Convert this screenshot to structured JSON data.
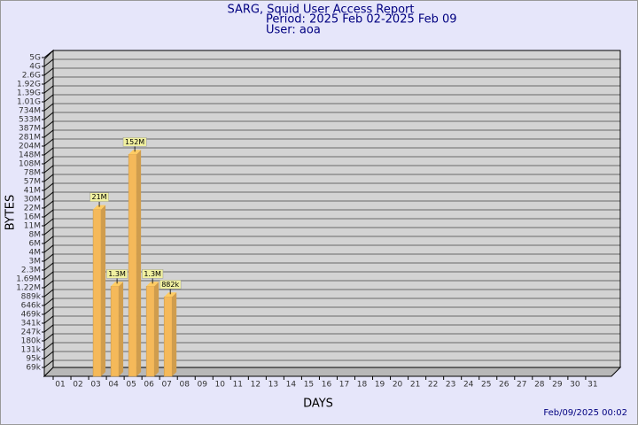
{
  "chart_data": {
    "type": "bar3d",
    "title": "SARG, Squid User Access Report",
    "subtitle": "Period: 2025 Feb 02-2025 Feb 09",
    "user": "User: aoa",
    "x_label": "DAYS",
    "y_label": "BYTES",
    "footer": "Feb/09/2025 00:02",
    "categories": [
      "01",
      "02",
      "03",
      "04",
      "05",
      "06",
      "07",
      "08",
      "09",
      "10",
      "11",
      "12",
      "13",
      "14",
      "15",
      "16",
      "17",
      "18",
      "19",
      "20",
      "21",
      "22",
      "23",
      "24",
      "25",
      "26",
      "27",
      "28",
      "29",
      "30",
      "31"
    ],
    "values": [
      null,
      null,
      21000000,
      1300000,
      152000000,
      1300000,
      882000,
      null,
      null,
      null,
      null,
      null,
      null,
      null,
      null,
      null,
      null,
      null,
      null,
      null,
      null,
      null,
      null,
      null,
      null,
      null,
      null,
      null,
      null,
      null,
      null
    ],
    "value_labels": [
      null,
      null,
      "21M",
      "1.3M",
      "152M",
      "1.3M",
      "882k",
      null,
      null,
      null,
      null,
      null,
      null,
      null,
      null,
      null,
      null,
      null,
      null,
      null,
      null,
      null,
      null,
      null,
      null,
      null,
      null,
      null,
      null,
      null,
      null
    ],
    "color": "#f5b95a",
    "ylim": [
      0,
      5000000000
    ],
    "yticks": [
      {
        "value": 69000,
        "label": "69k"
      },
      {
        "value": 95000,
        "label": "95k"
      },
      {
        "value": 131000,
        "label": "131k"
      },
      {
        "value": 180000,
        "label": "180k"
      },
      {
        "value": 247000,
        "label": "247k"
      },
      {
        "value": 341000,
        "label": "341k"
      },
      {
        "value": 469000,
        "label": "469k"
      },
      {
        "value": 646000,
        "label": "646k"
      },
      {
        "value": 889000,
        "label": "889k"
      },
      {
        "value": 1220000,
        "label": "1.22M"
      },
      {
        "value": 1690000,
        "label": "1.69M"
      },
      {
        "value": 2300000,
        "label": "2.3M"
      },
      {
        "value": 3000000,
        "label": "3M"
      },
      {
        "value": 4000000,
        "label": "4M"
      },
      {
        "value": 6000000,
        "label": "6M"
      },
      {
        "value": 8000000,
        "label": "8M"
      },
      {
        "value": 11000000,
        "label": "11M"
      },
      {
        "value": 16000000,
        "label": "16M"
      },
      {
        "value": 22000000,
        "label": "22M"
      },
      {
        "value": 30000000,
        "label": "30M"
      },
      {
        "value": 41000000,
        "label": "41M"
      },
      {
        "value": 57000000,
        "label": "57M"
      },
      {
        "value": 78000000,
        "label": "78M"
      },
      {
        "value": 108000000,
        "label": "108M"
      },
      {
        "value": 148000000,
        "label": "148M"
      },
      {
        "value": 204000000,
        "label": "204M"
      },
      {
        "value": 281000000,
        "label": "281M"
      },
      {
        "value": 387000000,
        "label": "387M"
      },
      {
        "value": 533000000,
        "label": "533M"
      },
      {
        "value": 734000000,
        "label": "734M"
      },
      {
        "value": 1010000000,
        "label": "1.01G"
      },
      {
        "value": 1390000000,
        "label": "1.39G"
      },
      {
        "value": 1920000000,
        "label": "1.92G"
      },
      {
        "value": 2600000000,
        "label": "2.6G"
      },
      {
        "value": 4000000000,
        "label": "4G"
      },
      {
        "value": 5000000000,
        "label": "5G"
      }
    ],
    "grid": true
  }
}
